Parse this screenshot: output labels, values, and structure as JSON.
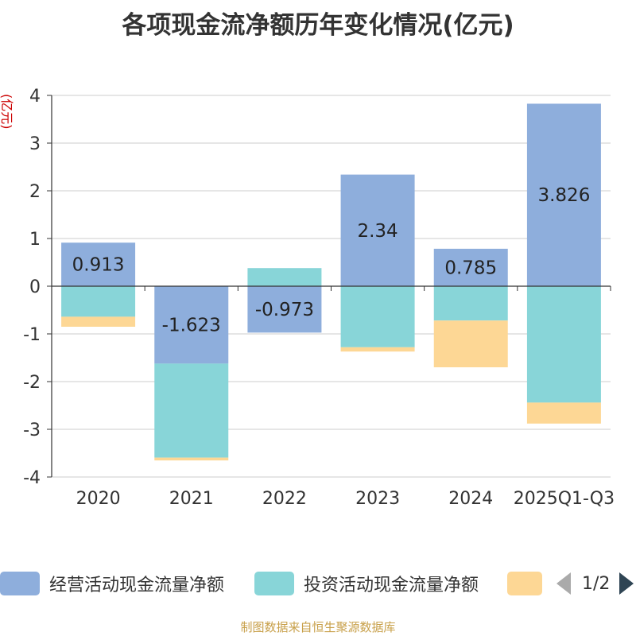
{
  "chart_data": {
    "type": "bar",
    "stacked": true,
    "title": "各项现金流净额历年变化情况(亿元)",
    "ylabel": "(亿元)",
    "xlabel": "",
    "ylim": [
      -4,
      4
    ],
    "yticks": [
      -4,
      -3,
      -2,
      -1,
      0,
      1,
      2,
      3,
      4
    ],
    "categories": [
      "2020",
      "2021",
      "2022",
      "2023",
      "2024",
      "2025Q1-Q3"
    ],
    "series": [
      {
        "name": "经营活动现金流量净额",
        "color": "#8eaedc",
        "values": [
          0.913,
          -1.623,
          -0.973,
          2.34,
          0.785,
          3.826
        ],
        "labels": [
          "0.913",
          "-1.623",
          "-0.973",
          "2.34",
          "0.785",
          "3.826"
        ]
      },
      {
        "name": "投资活动现金流量净额",
        "color": "#88d5d8",
        "values": [
          -0.64,
          -1.97,
          0.38,
          -1.28,
          -0.72,
          -2.44
        ]
      },
      {
        "name": "",
        "color": "#fdd795",
        "values": [
          -0.21,
          -0.06,
          0,
          -0.09,
          -0.98,
          -0.44
        ]
      }
    ],
    "legend_position": "bottom",
    "grid": true
  },
  "legend": {
    "page": "1/2"
  },
  "source": "制图数据来自恒生聚源数据库"
}
